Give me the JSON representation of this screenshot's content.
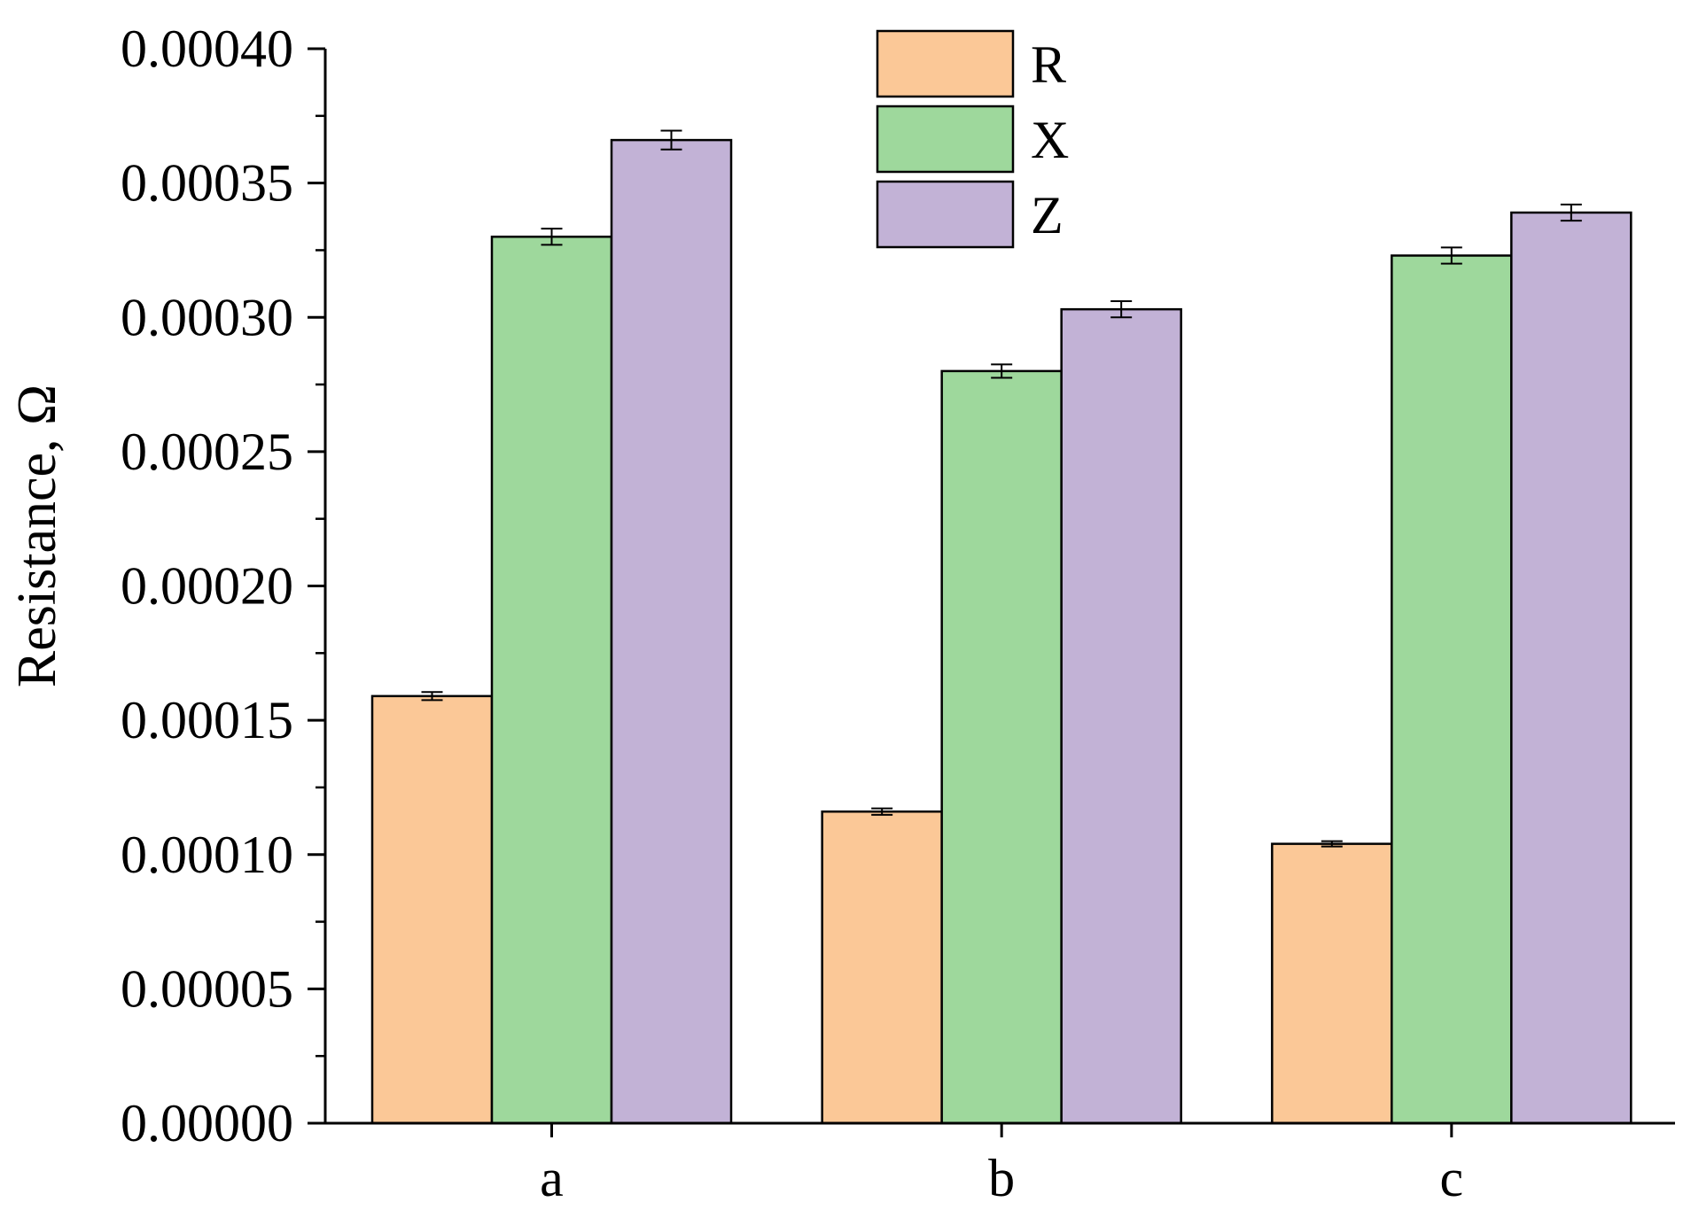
{
  "chart_data": {
    "type": "bar",
    "categories": [
      "a",
      "b",
      "c"
    ],
    "series": [
      {
        "name": "R",
        "color": "#fbc897",
        "values": [
          0.000159,
          0.000116,
          0.000104
        ],
        "errors": [
          1.5e-06,
          1.2e-06,
          1e-06
        ]
      },
      {
        "name": "X",
        "color": "#9ed89c",
        "values": [
          0.00033,
          0.00028,
          0.000323
        ],
        "errors": [
          3e-06,
          2.5e-06,
          3e-06
        ]
      },
      {
        "name": "Z",
        "color": "#c2b2d6",
        "values": [
          0.000366,
          0.000303,
          0.000339
        ],
        "errors": [
          3.5e-06,
          3e-06,
          3e-06
        ]
      }
    ],
    "ylabel": "Resistance, Ω",
    "xlabel": "",
    "ylim": [
      0,
      0.0004
    ],
    "yticks": [
      "0.00000",
      "0.00005",
      "0.00010",
      "0.00015",
      "0.00020",
      "0.00025",
      "0.00030",
      "0.00035",
      "0.00040"
    ],
    "grid": false,
    "legend_position": "top-center"
  }
}
